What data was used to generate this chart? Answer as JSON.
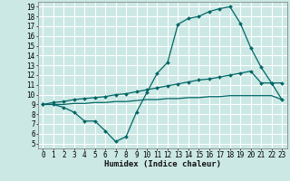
{
  "title": "",
  "xlabel": "Humidex (Indice chaleur)",
  "bg_color": "#cbe8e4",
  "grid_color": "#ffffff",
  "line_color": "#006666",
  "xlim": [
    -0.5,
    23.5
  ],
  "ylim": [
    4.5,
    19.5
  ],
  "yticks": [
    5,
    6,
    7,
    8,
    9,
    10,
    11,
    12,
    13,
    14,
    15,
    16,
    17,
    18,
    19
  ],
  "xticks": [
    0,
    1,
    2,
    3,
    4,
    5,
    6,
    7,
    8,
    9,
    10,
    11,
    12,
    13,
    14,
    15,
    16,
    17,
    18,
    19,
    20,
    21,
    22,
    23
  ],
  "line1_x": [
    0,
    1,
    2,
    3,
    4,
    5,
    6,
    7,
    8,
    9,
    10,
    11,
    12,
    13,
    14,
    15,
    16,
    17,
    18,
    19,
    20,
    21,
    22,
    23
  ],
  "line1_y": [
    9.0,
    9.0,
    8.7,
    8.2,
    7.3,
    7.3,
    6.3,
    5.2,
    5.7,
    8.2,
    10.2,
    12.2,
    13.3,
    17.2,
    17.8,
    18.0,
    18.5,
    18.8,
    19.0,
    17.3,
    14.8,
    12.8,
    11.2,
    11.2
  ],
  "line2_x": [
    0,
    1,
    2,
    3,
    4,
    5,
    6,
    7,
    8,
    9,
    10,
    11,
    12,
    13,
    14,
    15,
    16,
    17,
    18,
    19,
    20,
    21,
    22,
    23
  ],
  "line2_y": [
    9.0,
    9.2,
    9.3,
    9.5,
    9.6,
    9.7,
    9.8,
    10.0,
    10.1,
    10.3,
    10.5,
    10.7,
    10.9,
    11.1,
    11.3,
    11.5,
    11.6,
    11.8,
    12.0,
    12.2,
    12.4,
    11.2,
    11.2,
    9.5
  ],
  "line3_x": [
    0,
    1,
    2,
    3,
    4,
    5,
    6,
    7,
    8,
    9,
    10,
    11,
    12,
    13,
    14,
    15,
    16,
    17,
    18,
    19,
    20,
    21,
    22,
    23
  ],
  "line3_y": [
    9.0,
    9.0,
    9.0,
    9.1,
    9.1,
    9.2,
    9.2,
    9.3,
    9.3,
    9.4,
    9.5,
    9.5,
    9.6,
    9.6,
    9.7,
    9.7,
    9.8,
    9.8,
    9.9,
    9.9,
    9.9,
    9.9,
    9.9,
    9.5
  ],
  "tick_fontsize": 5.5,
  "xlabel_fontsize": 6.5
}
